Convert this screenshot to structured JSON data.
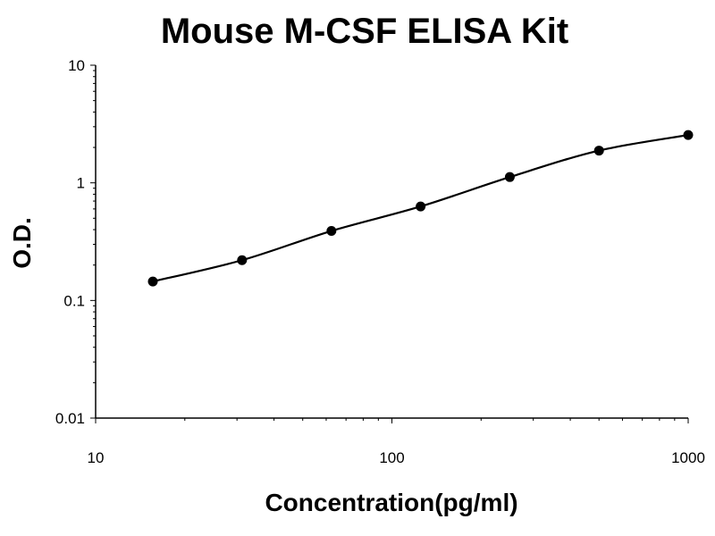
{
  "chart_data": {
    "type": "scatter",
    "title": "Mouse M-CSF ELISA Kit",
    "xlabel": "Concentration(pg/ml)",
    "ylabel": "O.D.",
    "x_scale": "log",
    "y_scale": "log",
    "xlim": [
      10,
      1000
    ],
    "ylim": [
      0.01,
      10
    ],
    "x_ticks": [
      "10",
      "100",
      "1000"
    ],
    "y_ticks": [
      "10",
      "1",
      "0.1",
      "0.01"
    ],
    "grid": false,
    "legend": "none",
    "series": [
      {
        "x": [
          15.6,
          31.2,
          62.5,
          125,
          250,
          500,
          1000
        ],
        "y": [
          0.145,
          0.22,
          0.39,
          0.63,
          1.12,
          1.88,
          2.55
        ]
      }
    ],
    "colors": {
      "points": "#000000",
      "curve": "#000000"
    }
  }
}
